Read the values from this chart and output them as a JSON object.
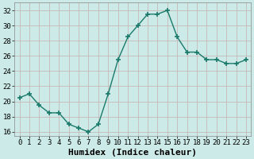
{
  "x": [
    0,
    1,
    2,
    3,
    4,
    5,
    6,
    7,
    8,
    9,
    10,
    11,
    12,
    13,
    14,
    15,
    16,
    17,
    18,
    19,
    20,
    21,
    22,
    23
  ],
  "y": [
    20.5,
    21.0,
    19.5,
    18.5,
    18.5,
    17.0,
    16.5,
    16.0,
    17.0,
    21.0,
    25.5,
    28.5,
    30.0,
    31.5,
    31.5,
    32.0,
    28.5,
    26.5,
    26.5,
    25.5,
    25.5,
    25.0,
    25.0,
    25.5
  ],
  "line_color": "#1a7a6a",
  "marker": "+",
  "marker_size": 4,
  "bg_color": "#cceae7",
  "grid_color": "#c8b8b8",
  "title": "",
  "xlabel": "Humidex (Indice chaleur)",
  "ylabel": "",
  "xlim": [
    -0.5,
    23.5
  ],
  "ylim": [
    15.5,
    33.0
  ],
  "yticks": [
    16,
    18,
    20,
    22,
    24,
    26,
    28,
    30,
    32
  ],
  "xtick_labels": [
    "0",
    "1",
    "2",
    "3",
    "4",
    "5",
    "6",
    "7",
    "8",
    "9",
    "10",
    "11",
    "12",
    "13",
    "14",
    "15",
    "16",
    "17",
    "18",
    "19",
    "20",
    "21",
    "22",
    "23"
  ],
  "tick_fontsize": 6.5,
  "xlabel_fontsize": 8.0
}
